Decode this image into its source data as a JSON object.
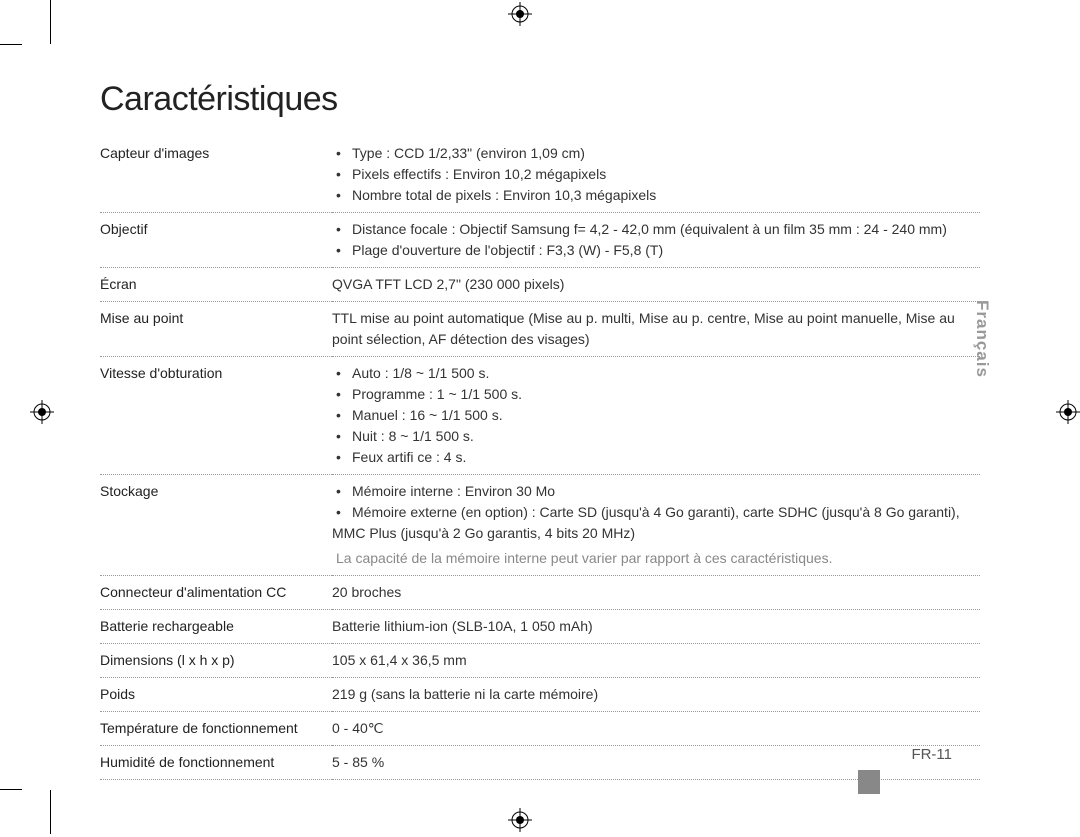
{
  "title": "Caractéristiques",
  "sideTab": "Français",
  "pageNumber": "FR-11",
  "rows": [
    {
      "label": "Capteur d'images",
      "bullets": [
        "Type : CCD 1/2,33\" (environ 1,09 cm)",
        "Pixels effectifs : Environ 10,2 mégapixels",
        "Nombre total de pixels : Environ 10,3 mégapixels"
      ]
    },
    {
      "label": "Objectif",
      "bullets": [
        "Distance focale : Objectif Samsung f= 4,2 - 42,0 mm (équivalent à un film 35 mm : 24 - 240 mm)",
        "Plage d'ouverture de l'objectif : F3,3 (W) - F5,8 (T)"
      ]
    },
    {
      "label": "Écran",
      "text": "QVGA TFT LCD 2,7\" (230 000 pixels)"
    },
    {
      "label": "Mise au point",
      "text": "TTL mise au point automatique (Mise au p. multi, Mise au p. centre, Mise au point manuelle, Mise au point sélection, AF détection des visages)"
    },
    {
      "label": "Vitesse d'obturation",
      "bullets": [
        "Auto : 1/8 ~ 1/1 500 s.",
        "Programme : 1 ~ 1/1 500 s.",
        "Manuel : 16 ~ 1/1 500 s.",
        "Nuit : 8 ~ 1/1 500 s.",
        "Feux artifi ce : 4 s."
      ]
    },
    {
      "label": "Stockage",
      "bullets": [
        "Mémoire interne : Environ 30 Mo",
        "Mémoire externe (en option) : Carte SD (jusqu'à 4 Go garanti), carte SDHC (jusqu'à 8 Go garanti), MMC Plus (jusqu'à 2 Go garantis, 4 bits 20 MHz)"
      ],
      "note": "La capacité de la mémoire interne peut varier par rapport à ces caractéristiques."
    },
    {
      "label": "Connecteur d'alimentation CC",
      "text": "20 broches"
    },
    {
      "label": "Batterie rechargeable",
      "text": "Batterie lithium-ion (SLB-10A, 1 050 mAh)"
    },
    {
      "label": "Dimensions (l x h x p)",
      "text": "105 x 61,4 x 36,5 mm"
    },
    {
      "label": "Poids",
      "text": "219 g (sans la batterie ni la carte mémoire)"
    },
    {
      "label": "Température de fonctionnement",
      "text": "0 - 40℃"
    },
    {
      "label": "Humidité de fonctionnement",
      "text": "5 - 85 %"
    }
  ]
}
